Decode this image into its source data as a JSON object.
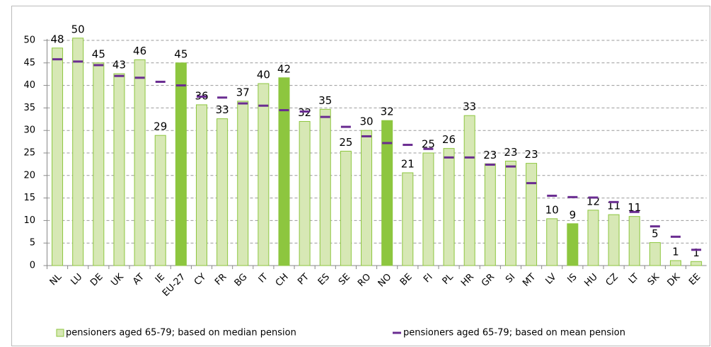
{
  "chart_data": {
    "type": "bar",
    "categories": [
      "NL",
      "LU",
      "DE",
      "UK",
      "AT",
      "IE",
      "EU-27",
      "CY",
      "FR",
      "BG",
      "IT",
      "CH",
      "PT",
      "ES",
      "SE",
      "RO",
      "NO",
      "BE",
      "FI",
      "PL",
      "HR",
      "GR",
      "SI",
      "MT",
      "LV",
      "IS",
      "HU",
      "CZ",
      "LT",
      "SK",
      "DK",
      "EE"
    ],
    "series": [
      {
        "name": "pensioners aged 65-79; based on median pension",
        "color": "#d7e8b5",
        "stroke": "#8dc63f",
        "colors": [
          "#d7e8b5",
          "#d7e8b5",
          "#d7e8b5",
          "#d7e8b5",
          "#d7e8b5",
          "#d7e8b5",
          "#8dc63f",
          "#d7e8b5",
          "#d7e8b5",
          "#d7e8b5",
          "#d7e8b5",
          "#8dc63f",
          "#d7e8b5",
          "#d7e8b5",
          "#d7e8b5",
          "#d7e8b5",
          "#8dc63f",
          "#d7e8b5",
          "#d7e8b5",
          "#d7e8b5",
          "#d7e8b5",
          "#d7e8b5",
          "#d7e8b5",
          "#d7e8b5",
          "#d7e8b5",
          "#8dc63f",
          "#d7e8b5",
          "#d7e8b5",
          "#d7e8b5",
          "#d7e8b5",
          "#d7e8b5",
          "#d7e8b5"
        ],
        "values": [
          48.3,
          50.5,
          45,
          42.6,
          45.7,
          28.9,
          45,
          35.7,
          32.6,
          36.5,
          40.4,
          41.7,
          32,
          34.7,
          25.4,
          30,
          32.2,
          20.6,
          25,
          26,
          33.3,
          22.6,
          23.2,
          22.7,
          10.4,
          9.3,
          12.3,
          11.3,
          10.9,
          5.1,
          1.1,
          0.9
        ],
        "value_labels": [
          "48",
          "50",
          "45",
          "43",
          "46",
          "29",
          "45",
          "36",
          "33",
          "37",
          "40",
          "42",
          "32",
          "35",
          "25",
          "30",
          "32",
          "21",
          "25",
          "26",
          "33",
          "23",
          "23",
          "23",
          "10",
          "9",
          "12",
          "11",
          "11",
          "5",
          "1",
          "1"
        ]
      },
      {
        "name": "pensioners aged 65-79; based on mean pension",
        "color": "#6a2c91",
        "marker": "dash",
        "values": [
          45.8,
          45.3,
          44.5,
          42.1,
          41.7,
          40.8,
          40,
          37.5,
          37.3,
          36,
          35.5,
          34.5,
          34.2,
          33,
          30.8,
          28.7,
          27.2,
          26.8,
          25.9,
          24,
          24,
          22.4,
          22,
          18.3,
          15.5,
          15.2,
          15.1,
          14.1,
          11.9,
          8.7,
          6.4,
          3.5
        ]
      }
    ],
    "ylim": [
      0,
      50
    ],
    "yticks": [
      0,
      5,
      10,
      15,
      20,
      25,
      30,
      35,
      40,
      45,
      50
    ],
    "grid": true,
    "legend": "bottom"
  }
}
